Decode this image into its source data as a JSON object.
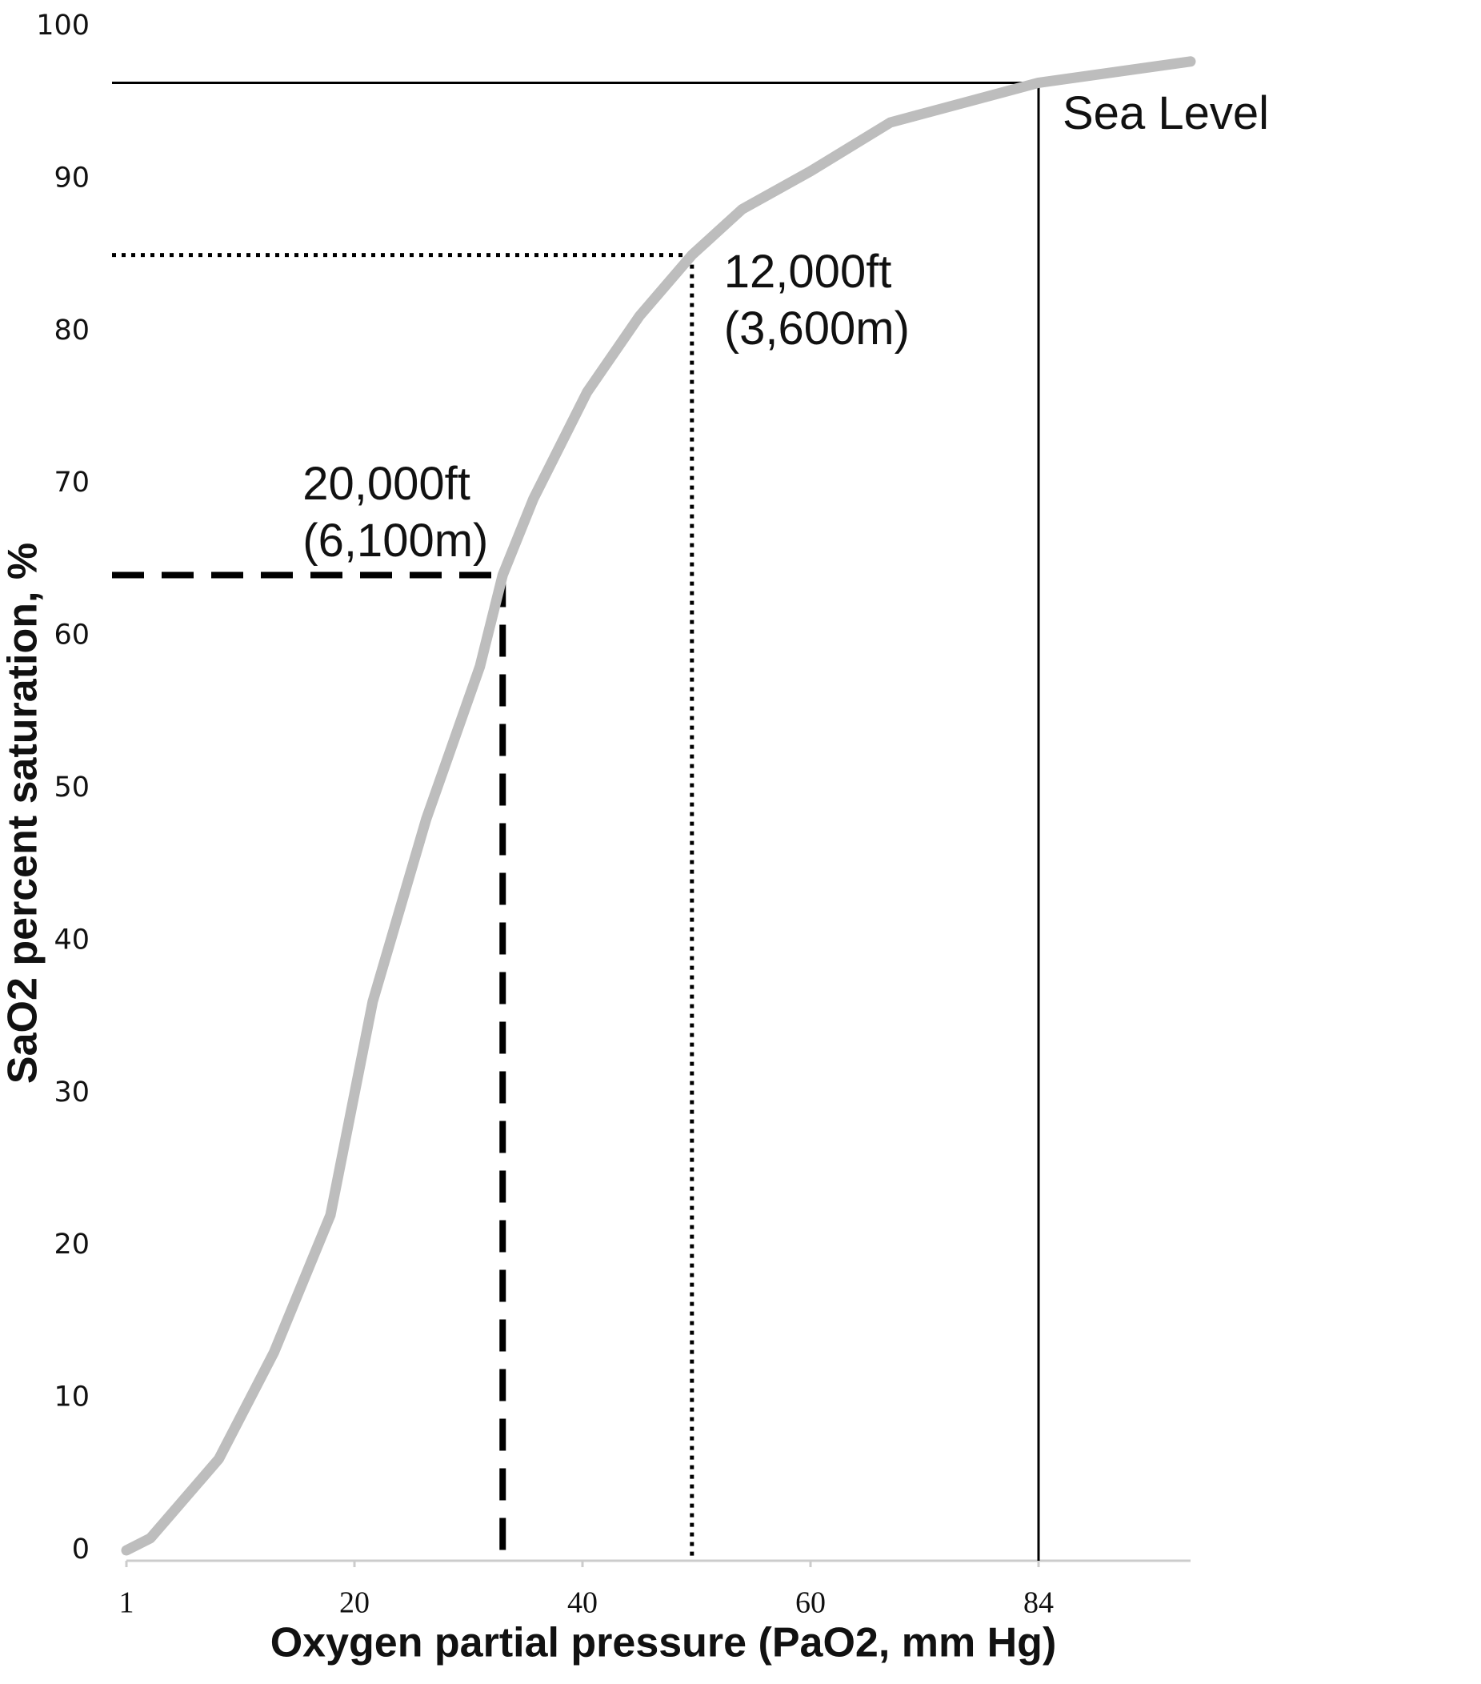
{
  "chart_data": {
    "type": "line",
    "x_label": "Oxygen partial pressure (PaO2, mm Hg)",
    "y_label": "SaO2 percent saturation, %",
    "series": [
      {
        "color": "#bdbdbd",
        "x": [
          1,
          3,
          8.7,
          13.3,
          18,
          21.6,
          26.3,
          31,
          33,
          35.7,
          40.4,
          45,
          49.6,
          54,
          60,
          68.4,
          84,
          100
        ],
        "values": [
          0,
          0.8,
          6,
          13,
          22,
          36,
          48,
          58,
          64,
          69,
          76,
          81,
          85,
          88,
          90.5,
          93.7,
          96.3,
          97.7
        ]
      }
    ],
    "xlim": [
      1,
      100
    ],
    "xticks": [
      1,
      20,
      40,
      60,
      84
    ],
    "ylim": [
      0,
      100
    ],
    "yticks": [
      0,
      10,
      20,
      30,
      40,
      50,
      60,
      70,
      80,
      90,
      100
    ],
    "markers": [
      {
        "x": 84,
        "y": 96.3,
        "labels": [
          "Sea Level"
        ]
      },
      {
        "x": 49.6,
        "y": 85,
        "labels": [
          "12,000ft",
          "(3,600m)"
        ]
      },
      {
        "x": 33,
        "y": 64,
        "labels": [
          "20,000ft",
          "(6,100m)"
        ]
      }
    ]
  }
}
